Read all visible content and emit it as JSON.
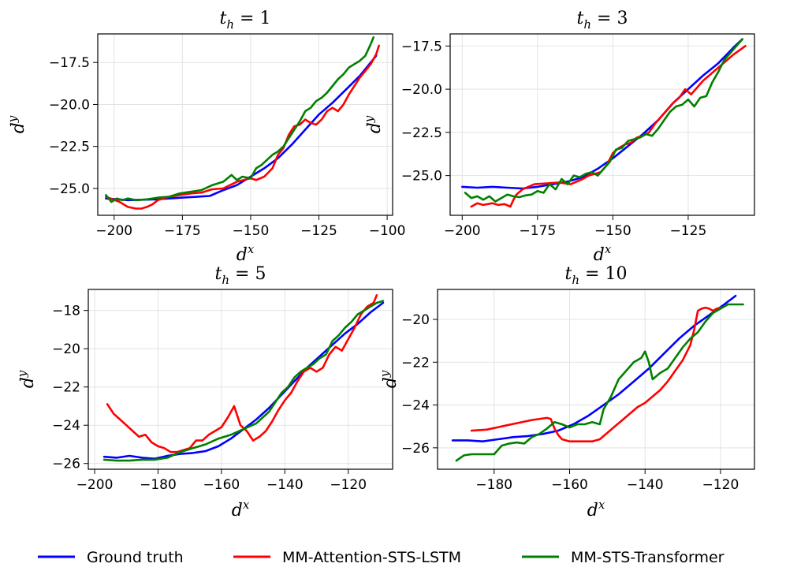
{
  "legend": [
    {
      "name": "Ground truth",
      "color": "#0000ff"
    },
    {
      "name": "MM-Attention-STS-LSTM",
      "color": "#ff0000"
    },
    {
      "name": "MM-STS-Transformer",
      "color": "#008000"
    }
  ],
  "chart_data": [
    {
      "type": "line",
      "title": "t_h = 1",
      "title_main": "t",
      "title_sub": "h",
      "title_rest": " = 1",
      "xlabel": "d^x",
      "xlabel_main": "d",
      "xlabel_sup": "x",
      "ylabel": "d^y",
      "ylabel_main": "d",
      "ylabel_sup": "y",
      "xlim": [
        -206,
        -98
      ],
      "ylim": [
        -26.6,
        -15.8
      ],
      "xticks": [
        -200,
        -175,
        -150,
        -125,
        -100
      ],
      "xtick_labels": [
        "−200",
        "−175",
        "−150",
        "−125",
        "−100"
      ],
      "yticks": [
        -25,
        -22.5,
        -20,
        -17.5
      ],
      "ytick_labels": [
        "−25.0",
        "−22.5",
        "−20.0",
        "−17.5"
      ],
      "grid": true,
      "series": [
        {
          "name": "Ground truth",
          "x": [
            -203,
            -195,
            -185,
            -175,
            -165,
            -160,
            -155,
            -150,
            -145,
            -140,
            -135,
            -130,
            -125,
            -120,
            -115,
            -110,
            -104
          ],
          "y": [
            -25.6,
            -25.7,
            -25.65,
            -25.55,
            -25.45,
            -25.1,
            -24.8,
            -24.3,
            -23.8,
            -23.2,
            -22.4,
            -21.5,
            -20.6,
            -19.9,
            -19.1,
            -18.3,
            -17.1
          ]
        },
        {
          "name": "MM-Attention-STS-LSTM",
          "x": [
            -203,
            -198,
            -195,
            -192,
            -190,
            -188,
            -186,
            -184,
            -182,
            -180,
            -176,
            -172,
            -168,
            -164,
            -160,
            -155,
            -150,
            -148,
            -145,
            -142,
            -140,
            -138,
            -136,
            -134,
            -132,
            -130,
            -128,
            -126,
            -124,
            -122,
            -120,
            -118,
            -116,
            -114,
            -112,
            -110,
            -108,
            -106,
            -104,
            -103
          ],
          "y": [
            -25.5,
            -25.8,
            -26.1,
            -26.2,
            -26.2,
            -26.1,
            -25.95,
            -25.7,
            -25.6,
            -25.5,
            -25.4,
            -25.3,
            -25.25,
            -25.05,
            -25.0,
            -24.6,
            -24.4,
            -24.5,
            -24.3,
            -23.8,
            -23.0,
            -22.6,
            -21.8,
            -21.3,
            -21.2,
            -20.9,
            -21.1,
            -21.2,
            -20.9,
            -20.4,
            -20.2,
            -20.4,
            -20.0,
            -19.4,
            -18.9,
            -18.4,
            -18.0,
            -17.6,
            -17.0,
            -16.5
          ]
        },
        {
          "name": "MM-STS-Transformer",
          "x": [
            -203,
            -201,
            -199,
            -197,
            -195,
            -192,
            -188,
            -184,
            -180,
            -176,
            -172,
            -168,
            -164,
            -160,
            -157,
            -155,
            -153,
            -150,
            -148,
            -146,
            -144,
            -142,
            -140,
            -138,
            -136,
            -134,
            -132,
            -130,
            -128,
            -126,
            -124,
            -122,
            -120,
            -118,
            -116,
            -114,
            -112,
            -110,
            -108,
            -106,
            -105
          ],
          "y": [
            -25.4,
            -25.8,
            -25.6,
            -25.7,
            -25.6,
            -25.7,
            -25.65,
            -25.55,
            -25.5,
            -25.3,
            -25.2,
            -25.1,
            -24.8,
            -24.6,
            -24.2,
            -24.5,
            -24.3,
            -24.4,
            -23.8,
            -23.6,
            -23.3,
            -23.0,
            -22.8,
            -22.5,
            -22.0,
            -21.5,
            -21.0,
            -20.4,
            -20.2,
            -19.8,
            -19.6,
            -19.3,
            -18.9,
            -18.5,
            -18.2,
            -17.8,
            -17.6,
            -17.4,
            -17.1,
            -16.4,
            -16.0
          ]
        }
      ]
    },
    {
      "type": "line",
      "title": "t_h = 3",
      "title_main": "t",
      "title_sub": "h",
      "title_rest": " = 3",
      "xlabel": "d^x",
      "xlabel_main": "d",
      "xlabel_sup": "x",
      "ylabel": "d^y",
      "ylabel_main": "d",
      "ylabel_sup": "y",
      "xlim": [
        -204,
        -103
      ],
      "ylim": [
        -27.3,
        -16.8
      ],
      "xticks": [
        -200,
        -175,
        -150,
        -125
      ],
      "xtick_labels": [
        "−200",
        "−175",
        "−150",
        "−125"
      ],
      "yticks": [
        -25,
        -22.5,
        -20,
        -17.5
      ],
      "ytick_labels": [
        "−25.0",
        "−22.5",
        "−20.0",
        "−17.5"
      ],
      "grid": true,
      "series": [
        {
          "name": "Ground truth",
          "x": [
            -200,
            -195,
            -190,
            -185,
            -180,
            -175,
            -170,
            -165,
            -160,
            -155,
            -150,
            -145,
            -140,
            -135,
            -130,
            -125,
            -120,
            -115,
            -110,
            -107
          ],
          "y": [
            -25.65,
            -25.7,
            -25.65,
            -25.7,
            -25.75,
            -25.65,
            -25.5,
            -25.35,
            -25.1,
            -24.6,
            -24.0,
            -23.3,
            -22.6,
            -21.8,
            -20.8,
            -20.0,
            -19.2,
            -18.5,
            -17.6,
            -17.1
          ]
        },
        {
          "name": "MM-Attention-STS-LSTM",
          "x": [
            -197,
            -195,
            -193,
            -190,
            -188,
            -186,
            -184,
            -183,
            -182,
            -180,
            -176,
            -172,
            -168,
            -164,
            -160,
            -158,
            -156,
            -154,
            -152,
            -150,
            -148,
            -146,
            -144,
            -142,
            -140,
            -138,
            -136,
            -134,
            -132,
            -130,
            -128,
            -126,
            -124,
            -122,
            -120,
            -118,
            -116,
            -114,
            -112,
            -110,
            -106
          ],
          "y": [
            -26.8,
            -26.6,
            -26.7,
            -26.6,
            -26.7,
            -26.65,
            -26.8,
            -26.4,
            -26.1,
            -25.8,
            -25.5,
            -25.45,
            -25.4,
            -25.5,
            -25.2,
            -25.0,
            -24.9,
            -24.8,
            -24.4,
            -23.7,
            -23.4,
            -23.2,
            -23.1,
            -22.8,
            -22.7,
            -22.5,
            -22.0,
            -21.6,
            -21.2,
            -20.8,
            -20.5,
            -20.0,
            -20.3,
            -19.9,
            -19.5,
            -19.2,
            -18.9,
            -18.6,
            -18.3,
            -18.0,
            -17.5
          ]
        },
        {
          "name": "MM-STS-Transformer",
          "x": [
            -199,
            -197,
            -195,
            -193,
            -191,
            -189,
            -187,
            -185,
            -183,
            -181,
            -179,
            -177,
            -175,
            -173,
            -171,
            -169,
            -167,
            -165,
            -163,
            -161,
            -159,
            -157,
            -155,
            -153,
            -151,
            -149,
            -147,
            -145,
            -143,
            -141,
            -139,
            -137,
            -135,
            -133,
            -131,
            -129,
            -127,
            -125,
            -123,
            -121,
            -119,
            -117,
            -115,
            -113,
            -111,
            -109,
            -107
          ],
          "y": [
            -26.0,
            -26.3,
            -26.2,
            -26.4,
            -26.2,
            -26.5,
            -26.3,
            -26.1,
            -26.2,
            -26.25,
            -26.15,
            -26.1,
            -25.9,
            -26.0,
            -25.5,
            -25.8,
            -25.2,
            -25.5,
            -25.0,
            -25.1,
            -24.9,
            -24.8,
            -25.0,
            -24.6,
            -24.2,
            -23.5,
            -23.4,
            -23.0,
            -22.9,
            -22.8,
            -22.6,
            -22.7,
            -22.3,
            -21.8,
            -21.3,
            -21.0,
            -20.9,
            -20.6,
            -21.0,
            -20.5,
            -20.4,
            -19.6,
            -19.0,
            -18.3,
            -17.9,
            -17.5,
            -17.1
          ]
        }
      ]
    },
    {
      "type": "line",
      "title": "t_h = 5",
      "title_main": "t",
      "title_sub": "h",
      "title_rest": " = 5",
      "xlabel": "d^x",
      "xlabel_main": "d",
      "xlabel_sup": "x",
      "ylabel": "d^y",
      "ylabel_main": "d",
      "ylabel_sup": "y",
      "xlim": [
        -202,
        -106
      ],
      "ylim": [
        -26.3,
        -16.9
      ],
      "xticks": [
        -200,
        -180,
        -160,
        -140,
        -120
      ],
      "xtick_labels": [
        "−200",
        "−180",
        "−160",
        "−140",
        "−120"
      ],
      "yticks": [
        -26,
        -24,
        -22,
        -20,
        -18
      ],
      "ytick_labels": [
        "−26",
        "−24",
        "−22",
        "−20",
        "−18"
      ],
      "grid": true,
      "series": [
        {
          "name": "Ground truth",
          "x": [
            -197,
            -193,
            -189,
            -185,
            -181,
            -177,
            -173,
            -169,
            -165,
            -161,
            -157,
            -153,
            -149,
            -145,
            -141,
            -137,
            -133,
            -129,
            -125,
            -121,
            -117,
            -113,
            -109
          ],
          "y": [
            -25.65,
            -25.7,
            -25.6,
            -25.7,
            -25.75,
            -25.6,
            -25.5,
            -25.45,
            -25.35,
            -25.1,
            -24.7,
            -24.2,
            -23.7,
            -23.1,
            -22.4,
            -21.7,
            -21.0,
            -20.4,
            -19.8,
            -19.2,
            -18.7,
            -18.1,
            -17.6
          ]
        },
        {
          "name": "MM-Attention-STS-LSTM",
          "x": [
            -196,
            -194,
            -192,
            -190,
            -188,
            -186,
            -184,
            -182,
            -180,
            -178,
            -176,
            -174,
            -172,
            -170,
            -168,
            -166,
            -164,
            -162,
            -160,
            -158,
            -156,
            -154,
            -152,
            -150,
            -148,
            -146,
            -144,
            -142,
            -140,
            -138,
            -136,
            -134,
            -132,
            -130,
            -128,
            -126,
            -124,
            -122,
            -120,
            -118,
            -116,
            -114,
            -112,
            -111
          ],
          "y": [
            -22.9,
            -23.4,
            -23.7,
            -24.0,
            -24.3,
            -24.6,
            -24.5,
            -24.9,
            -25.1,
            -25.2,
            -25.4,
            -25.4,
            -25.3,
            -25.2,
            -24.8,
            -24.8,
            -24.5,
            -24.3,
            -24.1,
            -23.6,
            -23.0,
            -24.0,
            -24.3,
            -24.8,
            -24.6,
            -24.3,
            -23.8,
            -23.2,
            -22.7,
            -22.3,
            -21.7,
            -21.2,
            -21.0,
            -21.2,
            -21.0,
            -20.3,
            -19.9,
            -20.1,
            -19.5,
            -18.9,
            -18.2,
            -17.8,
            -17.6,
            -17.2
          ]
        },
        {
          "name": "MM-STS-Transformer",
          "x": [
            -197,
            -193,
            -189,
            -185,
            -181,
            -177,
            -173,
            -169,
            -165,
            -161,
            -157,
            -153,
            -149,
            -147,
            -145,
            -143,
            -141,
            -139,
            -137,
            -135,
            -133,
            -131,
            -129,
            -127,
            -125,
            -123,
            -121,
            -119,
            -117,
            -115,
            -113,
            -111,
            -109
          ],
          "y": [
            -25.8,
            -25.85,
            -25.85,
            -25.8,
            -25.8,
            -25.7,
            -25.4,
            -25.2,
            -25.0,
            -24.7,
            -24.5,
            -24.2,
            -23.9,
            -23.6,
            -23.3,
            -22.8,
            -22.3,
            -22.0,
            -21.5,
            -21.2,
            -21.0,
            -20.8,
            -20.5,
            -20.3,
            -19.6,
            -19.3,
            -18.9,
            -18.6,
            -18.2,
            -18.0,
            -17.8,
            -17.6,
            -17.5
          ]
        }
      ]
    },
    {
      "type": "line",
      "title": "t_h = 10",
      "title_main": "t",
      "title_sub": "h",
      "title_rest": " = 10",
      "xlabel": "d^x",
      "xlabel_main": "d",
      "xlabel_sup": "x",
      "ylabel": "d^y",
      "ylabel_main": "d",
      "ylabel_sup": "y",
      "xlim": [
        -195,
        -111
      ],
      "ylim": [
        -27.0,
        -18.6
      ],
      "xticks": [
        -180,
        -160,
        -140,
        -120
      ],
      "xtick_labels": [
        "−180",
        "−160",
        "−140",
        "−120"
      ],
      "yticks": [
        -26,
        -24,
        -22,
        -20
      ],
      "ytick_labels": [
        "−26",
        "−24",
        "−22",
        "−20"
      ],
      "grid": true,
      "series": [
        {
          "name": "Ground truth",
          "x": [
            -191,
            -187,
            -183,
            -179,
            -175,
            -171,
            -167,
            -163,
            -159,
            -155,
            -151,
            -147,
            -143,
            -139,
            -135,
            -131,
            -127,
            -123,
            -119,
            -116
          ],
          "y": [
            -25.65,
            -25.65,
            -25.7,
            -25.6,
            -25.5,
            -25.45,
            -25.35,
            -25.2,
            -24.9,
            -24.5,
            -24.0,
            -23.5,
            -22.9,
            -22.3,
            -21.6,
            -20.9,
            -20.3,
            -19.8,
            -19.3,
            -18.9
          ]
        },
        {
          "name": "MM-Attention-STS-LSTM",
          "x": [
            -186,
            -182,
            -178,
            -174,
            -170,
            -166,
            -165,
            -164,
            -163,
            -162,
            -161,
            -160,
            -158,
            -156,
            -154,
            -152,
            -150,
            -148,
            -146,
            -144,
            -142,
            -140,
            -138,
            -136,
            -134,
            -132,
            -130,
            -128,
            -127,
            -126,
            -125,
            -124,
            -123,
            -122,
            -121,
            -120
          ],
          "y": [
            -25.2,
            -25.15,
            -25.0,
            -24.85,
            -24.7,
            -24.6,
            -24.65,
            -25.1,
            -25.4,
            -25.6,
            -25.65,
            -25.7,
            -25.7,
            -25.7,
            -25.7,
            -25.6,
            -25.3,
            -25.0,
            -24.7,
            -24.4,
            -24.1,
            -23.9,
            -23.6,
            -23.3,
            -22.9,
            -22.4,
            -21.9,
            -21.2,
            -20.5,
            -19.6,
            -19.5,
            -19.45,
            -19.5,
            -19.6,
            -19.5,
            -19.45
          ]
        },
        {
          "name": "MM-STS-Transformer",
          "x": [
            -190,
            -188,
            -186,
            -184,
            -182,
            -180,
            -178,
            -176,
            -174,
            -172,
            -170,
            -168,
            -166,
            -164,
            -162,
            -160,
            -158,
            -156,
            -154,
            -152,
            -151,
            -149,
            -147,
            -145,
            -143,
            -141,
            -140,
            -139,
            -138,
            -136,
            -134,
            -132,
            -130,
            -128,
            -126,
            -124,
            -122,
            -120,
            -118,
            -116,
            -114
          ],
          "y": [
            -26.6,
            -26.35,
            -26.3,
            -26.3,
            -26.3,
            -26.3,
            -25.9,
            -25.8,
            -25.75,
            -25.8,
            -25.5,
            -25.35,
            -25.1,
            -24.8,
            -24.9,
            -25.05,
            -24.9,
            -24.9,
            -24.8,
            -24.9,
            -24.2,
            -23.6,
            -22.8,
            -22.4,
            -22.0,
            -21.8,
            -21.5,
            -22.0,
            -22.8,
            -22.5,
            -22.3,
            -21.8,
            -21.3,
            -20.9,
            -20.6,
            -20.1,
            -19.7,
            -19.5,
            -19.3,
            -19.3,
            -19.3
          ]
        }
      ]
    }
  ]
}
